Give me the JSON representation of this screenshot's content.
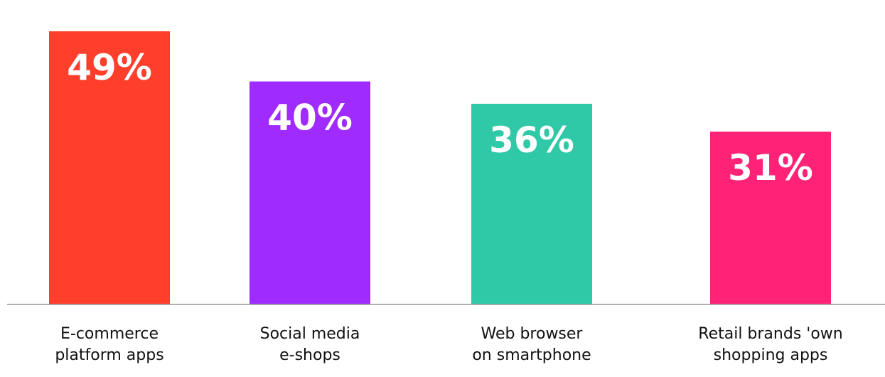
{
  "chart_data": {
    "type": "bar",
    "categories": [
      [
        "E-commerce",
        "platform apps"
      ],
      [
        "Social media",
        "e-shops"
      ],
      [
        "Web browser",
        "on smartphone"
      ],
      [
        "Retail brands 'own",
        "shopping apps"
      ]
    ],
    "values": [
      49,
      40,
      36,
      31
    ],
    "value_labels": [
      "49%",
      "40%",
      "36%",
      "31%"
    ],
    "colors": [
      "#ff3f2c",
      "#a02bff",
      "#30c9a8",
      "#ff2378"
    ],
    "baseline_color": "#999999",
    "ylim": [
      0,
      55
    ]
  }
}
